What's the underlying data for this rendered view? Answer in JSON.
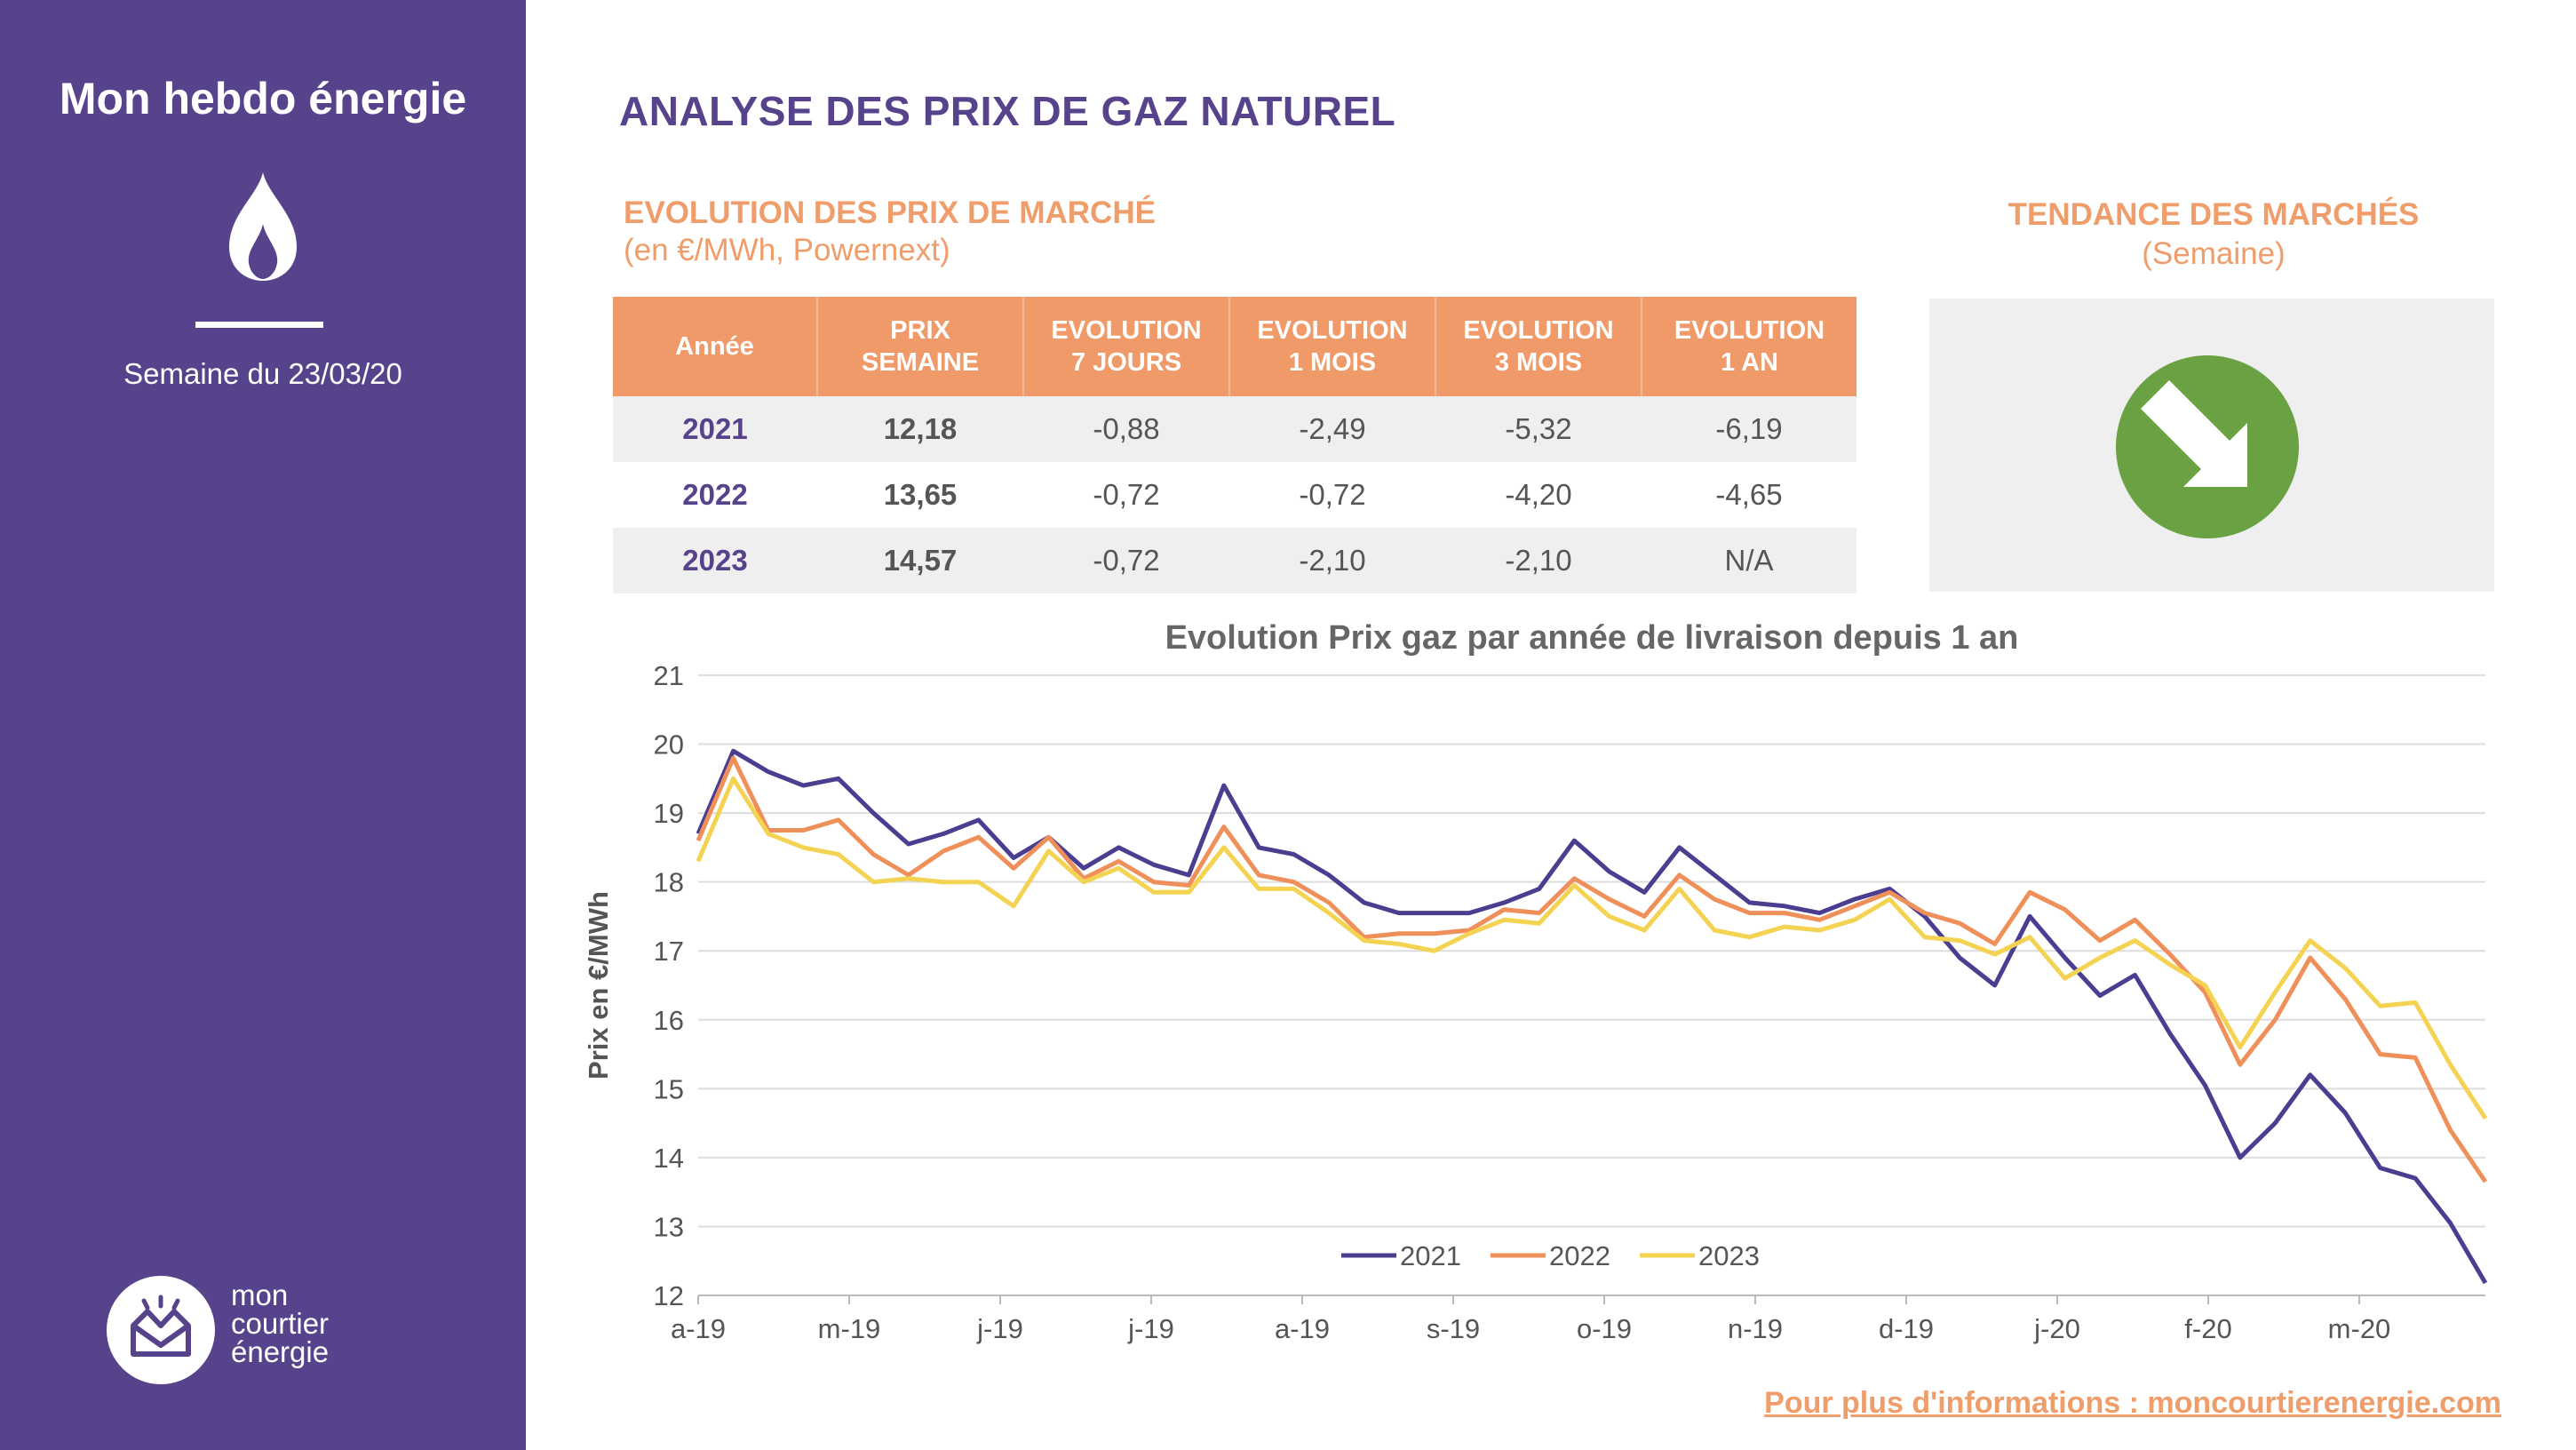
{
  "sidebar": {
    "title": "Mon hebdo énergie",
    "icon": "flame-icon",
    "week": "Semaine du 23/03/20",
    "logo_lines": [
      "mon",
      "courtier",
      "énergie"
    ]
  },
  "header": {
    "title": "ANALYSE DES PRIX DE GAZ NATUREL"
  },
  "market": {
    "title": "EVOLUTION DES PRIX DE MARCHÉ",
    "note": "(en €/MWh, Powernext)",
    "columns": [
      [
        "Année"
      ],
      [
        "PRIX",
        "SEMAINE"
      ],
      [
        "EVOLUTION",
        "7 JOURS"
      ],
      [
        "EVOLUTION",
        "1 MOIS"
      ],
      [
        "EVOLUTION",
        "3 MOIS"
      ],
      [
        "EVOLUTION",
        "1 AN"
      ]
    ],
    "rows": [
      [
        "2021",
        "12,18",
        "-0,88",
        "-2,49",
        "-5,32",
        "-6,19"
      ],
      [
        "2022",
        "13,65",
        "-0,72",
        "-0,72",
        "-4,20",
        "-4,65"
      ],
      [
        "2023",
        "14,57",
        "-0,72",
        "-2,10",
        "-2,10",
        "N/A"
      ]
    ]
  },
  "trend": {
    "title": "TENDANCE DES MARCHÉS",
    "note": "(Semaine)",
    "icon": "arrow-down-right-icon",
    "color": "#6aa143"
  },
  "chart_data": {
    "type": "line",
    "title": "Evolution Prix gaz par année de livraison depuis 1 an",
    "ylabel": "Prix en €/MWh",
    "ylim": [
      12,
      21
    ],
    "yticks": [
      12,
      13,
      14,
      15,
      16,
      17,
      18,
      19,
      20,
      21
    ],
    "xtick_labels": [
      "a-19",
      "m-19",
      "j-19",
      "j-19",
      "a-19",
      "s-19",
      "o-19",
      "n-19",
      "d-19",
      "j-20",
      "f-20",
      "m-20"
    ],
    "legend_position": "bottom-center",
    "grid": true,
    "series": [
      {
        "name": "2021",
        "color": "#4b3d8f",
        "values": [
          18.7,
          19.9,
          19.6,
          19.4,
          19.5,
          19.0,
          18.55,
          18.7,
          18.9,
          18.35,
          18.65,
          18.2,
          18.5,
          18.25,
          18.1,
          19.4,
          18.5,
          18.4,
          18.1,
          17.7,
          17.55,
          17.55,
          17.55,
          17.7,
          17.9,
          18.6,
          18.15,
          17.85,
          18.5,
          18.1,
          17.7,
          17.65,
          17.55,
          17.75,
          17.9,
          17.5,
          16.9,
          16.5,
          17.5,
          16.9,
          16.35,
          16.65,
          15.8,
          15.05,
          14.0,
          14.5,
          15.2,
          14.65,
          13.85,
          13.7,
          13.05,
          12.18
        ]
      },
      {
        "name": "2022",
        "color": "#ef8f5a",
        "values": [
          18.6,
          19.8,
          18.75,
          18.75,
          18.9,
          18.4,
          18.1,
          18.45,
          18.65,
          18.2,
          18.65,
          18.05,
          18.3,
          18.0,
          17.95,
          18.8,
          18.1,
          18.0,
          17.7,
          17.2,
          17.25,
          17.25,
          17.3,
          17.6,
          17.55,
          18.05,
          17.75,
          17.5,
          18.1,
          17.75,
          17.55,
          17.55,
          17.45,
          17.65,
          17.85,
          17.55,
          17.4,
          17.1,
          17.85,
          17.6,
          17.15,
          17.45,
          16.95,
          16.4,
          15.35,
          16.0,
          16.9,
          16.3,
          15.5,
          15.45,
          14.4,
          13.65
        ]
      },
      {
        "name": "2023",
        "color": "#f5d352",
        "values": [
          18.3,
          19.5,
          18.7,
          18.5,
          18.4,
          18.0,
          18.05,
          18.0,
          18.0,
          17.65,
          18.45,
          18.0,
          18.2,
          17.85,
          17.85,
          18.5,
          17.9,
          17.9,
          17.55,
          17.15,
          17.1,
          17.0,
          17.25,
          17.45,
          17.4,
          17.95,
          17.5,
          17.3,
          17.9,
          17.3,
          17.2,
          17.35,
          17.3,
          17.45,
          17.75,
          17.2,
          17.15,
          16.95,
          17.2,
          16.6,
          16.9,
          17.15,
          16.8,
          16.5,
          15.6,
          16.4,
          17.15,
          16.75,
          16.2,
          16.25,
          15.35,
          14.57
        ]
      }
    ]
  },
  "footer": {
    "link": "Pour plus d'informations : moncourtierenergie.com"
  }
}
